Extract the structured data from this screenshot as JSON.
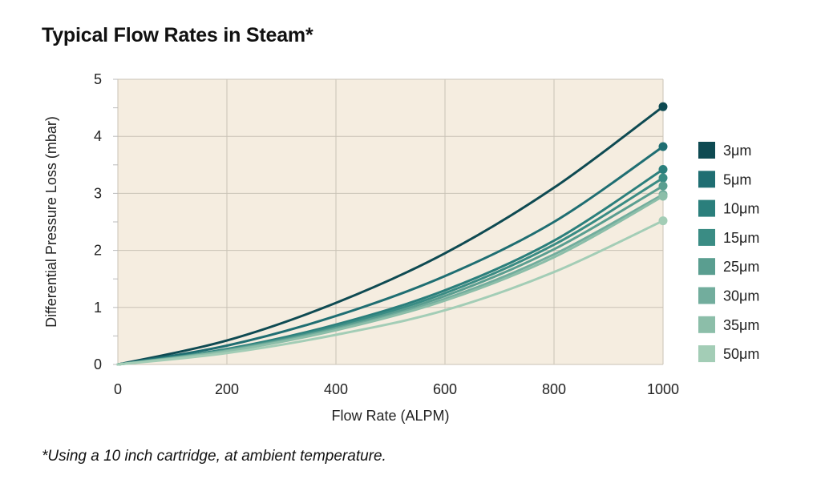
{
  "title": "Typical Flow Rates in Steam*",
  "footnote": "*Using a 10 inch cartridge, at ambient temperature.",
  "colors": {
    "plot_background": "#f5ede0",
    "grid": "#c9c2b6"
  },
  "chart_data": {
    "type": "line",
    "title": "Typical Flow Rates in Steam*",
    "xlabel": "Flow Rate (ALPM)",
    "ylabel": "Differential Pressure Loss (mbar)",
    "xlim": [
      0,
      1000
    ],
    "ylim": [
      0,
      5
    ],
    "xticks": [
      0,
      200,
      400,
      600,
      800,
      1000
    ],
    "yticks": [
      0,
      1,
      2,
      3,
      4,
      5
    ],
    "grid": true,
    "legend_position": "right",
    "x": [
      0,
      200,
      400,
      600,
      800,
      1000
    ],
    "series": [
      {
        "name": "3μm",
        "color": "#0e4a52",
        "values": [
          0,
          0.42,
          1.08,
          1.95,
          3.1,
          4.52
        ]
      },
      {
        "name": "5μm",
        "color": "#1f6e72",
        "values": [
          0,
          0.33,
          0.85,
          1.55,
          2.5,
          3.82
        ]
      },
      {
        "name": "10μm",
        "color": "#2b7f7c",
        "values": [
          0,
          0.27,
          0.7,
          1.3,
          2.17,
          3.42
        ]
      },
      {
        "name": "15μm",
        "color": "#3a8c84",
        "values": [
          0,
          0.26,
          0.67,
          1.25,
          2.1,
          3.27
        ]
      },
      {
        "name": "25μm",
        "color": "#5a9e90",
        "values": [
          0,
          0.25,
          0.64,
          1.2,
          2.02,
          3.13
        ]
      },
      {
        "name": "30μm",
        "color": "#72ad9d",
        "values": [
          0,
          0.24,
          0.62,
          1.15,
          1.93,
          2.98
        ]
      },
      {
        "name": "35μm",
        "color": "#8cbea9",
        "values": [
          0,
          0.23,
          0.6,
          1.12,
          1.88,
          2.95
        ]
      },
      {
        "name": "50μm",
        "color": "#a3cdb6",
        "values": [
          0,
          0.2,
          0.52,
          0.95,
          1.62,
          2.52
        ]
      }
    ]
  }
}
